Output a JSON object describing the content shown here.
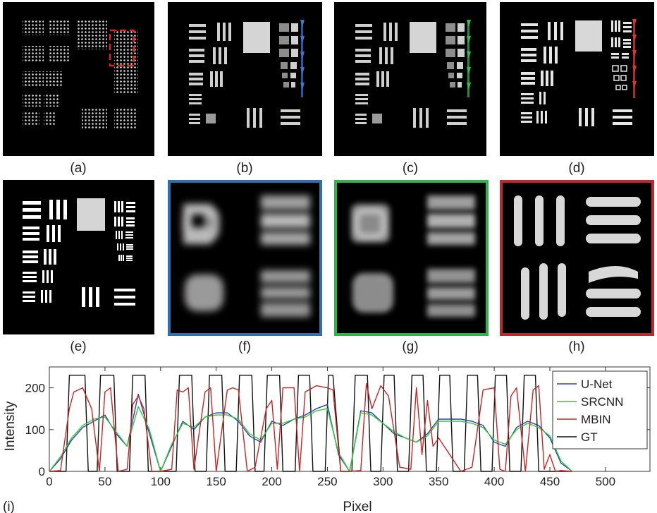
{
  "panels": [
    {
      "id": "a",
      "label": "(a)"
    },
    {
      "id": "b",
      "label": "(b)"
    },
    {
      "id": "c",
      "label": "(c)"
    },
    {
      "id": "d",
      "label": "(d)"
    },
    {
      "id": "e",
      "label": "(e)"
    },
    {
      "id": "f",
      "label": "(f)"
    },
    {
      "id": "g",
      "label": "(g)"
    },
    {
      "id": "h",
      "label": "(h)"
    }
  ],
  "colors": {
    "unet": "#2b3fbf",
    "srcnn": "#33cc33",
    "mbin": "#cc2222",
    "gt": "#111111",
    "blue_frame": "#2f6fb0",
    "green_frame": "#2fb34a",
    "red_frame": "#c0292b"
  },
  "chart_data": {
    "type": "line",
    "panel_label": "(i)",
    "xlabel": "Pixel",
    "ylabel": "Intensity",
    "xlim": [
      0,
      540
    ],
    "ylim": [
      0,
      250
    ],
    "xticks": [
      0,
      50,
      100,
      150,
      200,
      250,
      300,
      350,
      400,
      450,
      500
    ],
    "yticks": [
      0,
      100,
      200
    ],
    "legend_position": "top-right",
    "series": [
      {
        "name": "U-Net",
        "color": "#2b3fbf",
        "x": [
          0,
          10,
          20,
          30,
          40,
          50,
          60,
          70,
          80,
          90,
          100,
          110,
          120,
          130,
          140,
          150,
          160,
          170,
          180,
          190,
          200,
          210,
          220,
          230,
          240,
          250,
          260,
          270,
          280,
          290,
          300,
          310,
          320,
          330,
          340,
          350,
          360,
          370,
          380,
          390,
          400,
          410,
          420,
          430,
          440,
          450,
          460,
          470
        ],
        "y": [
          0,
          30,
          75,
          105,
          120,
          135,
          90,
          60,
          185,
          90,
          0,
          60,
          120,
          100,
          130,
          140,
          140,
          120,
          85,
          70,
          120,
          110,
          125,
          135,
          150,
          160,
          40,
          0,
          145,
          140,
          115,
          90,
          80,
          70,
          90,
          125,
          125,
          125,
          120,
          110,
          70,
          60,
          105,
          120,
          110,
          80,
          20,
          0
        ]
      },
      {
        "name": "SRCNN",
        "color": "#33cc33",
        "x": [
          0,
          10,
          20,
          30,
          40,
          50,
          60,
          70,
          80,
          90,
          100,
          110,
          120,
          130,
          140,
          150,
          160,
          170,
          180,
          190,
          200,
          210,
          220,
          230,
          240,
          250,
          260,
          270,
          280,
          290,
          300,
          310,
          320,
          330,
          340,
          350,
          360,
          370,
          380,
          390,
          400,
          410,
          420,
          430,
          440,
          450,
          460,
          470
        ],
        "y": [
          0,
          35,
          80,
          110,
          125,
          130,
          95,
          60,
          155,
          100,
          0,
          65,
          115,
          105,
          130,
          135,
          135,
          125,
          90,
          75,
          115,
          115,
          125,
          130,
          145,
          150,
          45,
          0,
          140,
          135,
          115,
          95,
          80,
          70,
          85,
          120,
          120,
          120,
          115,
          105,
          75,
          65,
          100,
          115,
          105,
          85,
          25,
          0
        ]
      },
      {
        "name": "MBIN",
        "color": "#cc2222",
        "x": [
          0,
          10,
          18,
          22,
          30,
          38,
          45,
          50,
          55,
          62,
          70,
          75,
          80,
          85,
          92,
          100,
          110,
          115,
          120,
          125,
          130,
          140,
          145,
          150,
          160,
          165,
          170,
          178,
          185,
          195,
          200,
          205,
          210,
          220,
          225,
          230,
          240,
          250,
          255,
          262,
          270,
          280,
          285,
          290,
          298,
          305,
          315,
          325,
          330,
          335,
          340,
          345,
          350,
          360,
          370,
          380,
          390,
          400,
          405,
          410,
          415,
          420,
          428,
          435,
          440,
          445,
          450,
          455,
          460,
          470
        ],
        "y": [
          0,
          2,
          150,
          190,
          200,
          150,
          0,
          190,
          200,
          0,
          5,
          160,
          180,
          150,
          0,
          0,
          5,
          195,
          190,
          200,
          5,
          190,
          200,
          0,
          195,
          200,
          195,
          0,
          10,
          150,
          170,
          5,
          200,
          200,
          0,
          190,
          205,
          200,
          195,
          0,
          0,
          2,
          210,
          150,
          205,
          180,
          10,
          5,
          200,
          40,
          170,
          60,
          80,
          40,
          0,
          10,
          195,
          200,
          5,
          0,
          180,
          200,
          0,
          195,
          205,
          5,
          40,
          0,
          2,
          0
        ]
      },
      {
        "name": "GT",
        "color": "#111111",
        "x": [
          0,
          15,
          18,
          32,
          35,
          43,
          46,
          58,
          61,
          72,
          75,
          86,
          89,
          100,
          114,
          117,
          128,
          131,
          141,
          144,
          155,
          158,
          168,
          171,
          182,
          185,
          193,
          196,
          207,
          210,
          221,
          224,
          234,
          237,
          248,
          251,
          255,
          262,
          272,
          275,
          286,
          289,
          298,
          301,
          310,
          313,
          323,
          326,
          336,
          339,
          348,
          351,
          360,
          363,
          373,
          376,
          385,
          388,
          398,
          401,
          411,
          414,
          424,
          427,
          437,
          440,
          452,
          455,
          470
        ],
        "y": [
          0,
          0,
          230,
          230,
          0,
          0,
          230,
          230,
          0,
          0,
          230,
          230,
          0,
          0,
          0,
          230,
          230,
          0,
          0,
          230,
          230,
          0,
          0,
          230,
          230,
          0,
          0,
          230,
          230,
          0,
          0,
          230,
          230,
          0,
          0,
          230,
          230,
          0,
          0,
          230,
          230,
          0,
          0,
          230,
          230,
          0,
          0,
          230,
          230,
          0,
          0,
          230,
          230,
          0,
          0,
          230,
          230,
          0,
          0,
          230,
          230,
          0,
          0,
          230,
          230,
          0,
          0,
          0,
          0
        ]
      }
    ]
  }
}
